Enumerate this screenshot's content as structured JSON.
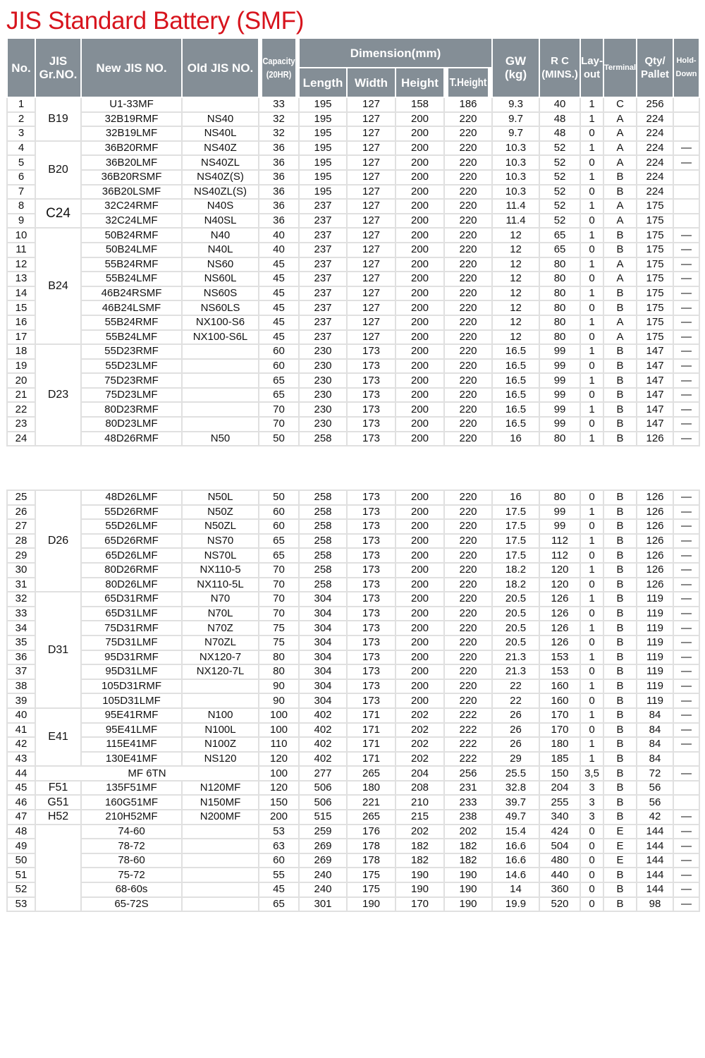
{
  "title": "JIS Standard Battery (SMF)",
  "headers": {
    "no": "No.",
    "jis_gr": "JIS Gr.NO.",
    "new_jis": "New JIS NO.",
    "old_jis": "Old JIS NO.",
    "capacity": "Capacity (20HR)",
    "dimension": "Dimension(mm)",
    "length": "Length",
    "width": "Width",
    "height": "Height",
    "t_height": "T.Height",
    "gw": "GW (kg)",
    "rc": "R C (MINS.)",
    "layout": "Lay- out",
    "terminal": "Terminal",
    "qty": "Qty/ Pallet",
    "hold": "Hold- Down"
  },
  "groups": [
    {
      "label": "B19",
      "first": 1,
      "last": 3
    },
    {
      "label": "B20",
      "first": 4,
      "last": 7
    },
    {
      "label": "C24",
      "first": 8,
      "last": 9
    },
    {
      "label": "B24",
      "first": 10,
      "last": 17
    },
    {
      "label": "D23",
      "first": 18,
      "last": 24
    },
    {
      "label": "D26",
      "first": 25,
      "last": 31
    },
    {
      "label": "D31",
      "first": 32,
      "last": 39
    },
    {
      "label": "E41",
      "first": 40,
      "last": 43
    },
    {
      "label": "F51",
      "first": 45,
      "last": 45
    },
    {
      "label": "G51",
      "first": 46,
      "last": 46
    },
    {
      "label": "H52",
      "first": 47,
      "last": 47
    },
    {
      "label": "",
      "first": 48,
      "last": 53
    }
  ],
  "columns": [
    "no",
    "new_jis",
    "old_jis",
    "capacity",
    "length",
    "width",
    "height",
    "t_height",
    "gw",
    "rc",
    "layout",
    "terminal",
    "qty",
    "hold"
  ],
  "rows": [
    [
      "1",
      "U1-33MF",
      "",
      "33",
      "195",
      "127",
      "158",
      "186",
      "9.3",
      "40",
      "1",
      "C",
      "256",
      ""
    ],
    [
      "2",
      "32B19RMF",
      "NS40",
      "32",
      "195",
      "127",
      "200",
      "220",
      "9.7",
      "48",
      "1",
      "A",
      "224",
      ""
    ],
    [
      "3",
      "32B19LMF",
      "NS40L",
      "32",
      "195",
      "127",
      "200",
      "220",
      "9.7",
      "48",
      "0",
      "A",
      "224",
      ""
    ],
    [
      "4",
      "36B20RMF",
      "NS40Z",
      "36",
      "195",
      "127",
      "200",
      "220",
      "10.3",
      "52",
      "1",
      "A",
      "224",
      "—"
    ],
    [
      "5",
      "36B20LMF",
      "NS40ZL",
      "36",
      "195",
      "127",
      "200",
      "220",
      "10.3",
      "52",
      "0",
      "A",
      "224",
      "—"
    ],
    [
      "6",
      "36B20RSMF",
      "NS40Z(S)",
      "36",
      "195",
      "127",
      "200",
      "220",
      "10.3",
      "52",
      "1",
      "B",
      "224",
      ""
    ],
    [
      "7",
      "36B20LSMF",
      "NS40ZL(S)",
      "36",
      "195",
      "127",
      "200",
      "220",
      "10.3",
      "52",
      "0",
      "B",
      "224",
      ""
    ],
    [
      "8",
      "32C24RMF",
      "N40S",
      "36",
      "237",
      "127",
      "200",
      "220",
      "11.4",
      "52",
      "1",
      "A",
      "175",
      ""
    ],
    [
      "9",
      "32C24LMF",
      "N40SL",
      "36",
      "237",
      "127",
      "200",
      "220",
      "11.4",
      "52",
      "0",
      "A",
      "175",
      ""
    ],
    [
      "10",
      "50B24RMF",
      "N40",
      "40",
      "237",
      "127",
      "200",
      "220",
      "12",
      "65",
      "1",
      "B",
      "175",
      "—"
    ],
    [
      "11",
      "50B24LMF",
      "N40L",
      "40",
      "237",
      "127",
      "200",
      "220",
      "12",
      "65",
      "0",
      "B",
      "175",
      "—"
    ],
    [
      "12",
      "55B24RMF",
      "NS60",
      "45",
      "237",
      "127",
      "200",
      "220",
      "12",
      "80",
      "1",
      "A",
      "175",
      "—"
    ],
    [
      "13",
      "55B24LMF",
      "NS60L",
      "45",
      "237",
      "127",
      "200",
      "220",
      "12",
      "80",
      "0",
      "A",
      "175",
      "—"
    ],
    [
      "14",
      "46B24RSMF",
      "NS60S",
      "45",
      "237",
      "127",
      "200",
      "220",
      "12",
      "80",
      "1",
      "B",
      "175",
      "—"
    ],
    [
      "15",
      "46B24LSMF",
      "NS60LS",
      "45",
      "237",
      "127",
      "200",
      "220",
      "12",
      "80",
      "0",
      "B",
      "175",
      "—"
    ],
    [
      "16",
      "55B24RMF",
      "NX100-S6",
      "45",
      "237",
      "127",
      "200",
      "220",
      "12",
      "80",
      "1",
      "A",
      "175",
      "—"
    ],
    [
      "17",
      "55B24LMF",
      "NX100-S6L",
      "45",
      "237",
      "127",
      "200",
      "220",
      "12",
      "80",
      "0",
      "A",
      "175",
      "—"
    ],
    [
      "18",
      "55D23RMF",
      "",
      "60",
      "230",
      "173",
      "200",
      "220",
      "16.5",
      "99",
      "1",
      "B",
      "147",
      "—"
    ],
    [
      "19",
      "55D23LMF",
      "",
      "60",
      "230",
      "173",
      "200",
      "220",
      "16.5",
      "99",
      "0",
      "B",
      "147",
      "—"
    ],
    [
      "20",
      "75D23RMF",
      "",
      "65",
      "230",
      "173",
      "200",
      "220",
      "16.5",
      "99",
      "1",
      "B",
      "147",
      "—"
    ],
    [
      "21",
      "75D23LMF",
      "",
      "65",
      "230",
      "173",
      "200",
      "220",
      "16.5",
      "99",
      "0",
      "B",
      "147",
      "—"
    ],
    [
      "22",
      "80D23RMF",
      "",
      "70",
      "230",
      "173",
      "200",
      "220",
      "16.5",
      "99",
      "1",
      "B",
      "147",
      "—"
    ],
    [
      "23",
      "80D23LMF",
      "",
      "70",
      "230",
      "173",
      "200",
      "220",
      "16.5",
      "99",
      "0",
      "B",
      "147",
      "—"
    ],
    [
      "24",
      "48D26RMF",
      "N50",
      "50",
      "258",
      "173",
      "200",
      "220",
      "16",
      "80",
      "1",
      "B",
      "126",
      "—"
    ],
    [
      "25",
      "48D26LMF",
      "N50L",
      "50",
      "258",
      "173",
      "200",
      "220",
      "16",
      "80",
      "0",
      "B",
      "126",
      "—"
    ],
    [
      "26",
      "55D26RMF",
      "N50Z",
      "60",
      "258",
      "173",
      "200",
      "220",
      "17.5",
      "99",
      "1",
      "B",
      "126",
      "—"
    ],
    [
      "27",
      "55D26LMF",
      "N50ZL",
      "60",
      "258",
      "173",
      "200",
      "220",
      "17.5",
      "99",
      "0",
      "B",
      "126",
      "—"
    ],
    [
      "28",
      "65D26RMF",
      "NS70",
      "65",
      "258",
      "173",
      "200",
      "220",
      "17.5",
      "112",
      "1",
      "B",
      "126",
      "—"
    ],
    [
      "29",
      "65D26LMF",
      "NS70L",
      "65",
      "258",
      "173",
      "200",
      "220",
      "17.5",
      "112",
      "0",
      "B",
      "126",
      "—"
    ],
    [
      "30",
      "80D26RMF",
      "NX110-5",
      "70",
      "258",
      "173",
      "200",
      "220",
      "18.2",
      "120",
      "1",
      "B",
      "126",
      "—"
    ],
    [
      "31",
      "80D26LMF",
      "NX110-5L",
      "70",
      "258",
      "173",
      "200",
      "220",
      "18.2",
      "120",
      "0",
      "B",
      "126",
      "—"
    ],
    [
      "32",
      "65D31RMF",
      "N70",
      "70",
      "304",
      "173",
      "200",
      "220",
      "20.5",
      "126",
      "1",
      "B",
      "119",
      "—"
    ],
    [
      "33",
      "65D31LMF",
      "N70L",
      "70",
      "304",
      "173",
      "200",
      "220",
      "20.5",
      "126",
      "0",
      "B",
      "119",
      "—"
    ],
    [
      "34",
      "75D31RMF",
      "N70Z",
      "75",
      "304",
      "173",
      "200",
      "220",
      "20.5",
      "126",
      "1",
      "B",
      "119",
      "—"
    ],
    [
      "35",
      "75D31LMF",
      "N70ZL",
      "75",
      "304",
      "173",
      "200",
      "220",
      "20.5",
      "126",
      "0",
      "B",
      "119",
      "—"
    ],
    [
      "36",
      "95D31RMF",
      "NX120-7",
      "80",
      "304",
      "173",
      "200",
      "220",
      "21.3",
      "153",
      "1",
      "B",
      "119",
      "—"
    ],
    [
      "37",
      "95D31LMF",
      "NX120-7L",
      "80",
      "304",
      "173",
      "200",
      "220",
      "21.3",
      "153",
      "0",
      "B",
      "119",
      "—"
    ],
    [
      "38",
      "105D31RMF",
      "",
      "90",
      "304",
      "173",
      "200",
      "220",
      "22",
      "160",
      "1",
      "B",
      "119",
      "—"
    ],
    [
      "39",
      "105D31LMF",
      "",
      "90",
      "304",
      "173",
      "200",
      "220",
      "22",
      "160",
      "0",
      "B",
      "119",
      "—"
    ],
    [
      "40",
      "95E41RMF",
      "N100",
      "100",
      "402",
      "171",
      "202",
      "222",
      "26",
      "170",
      "1",
      "B",
      "84",
      "—"
    ],
    [
      "41",
      "95E41LMF",
      "N100L",
      "100",
      "402",
      "171",
      "202",
      "222",
      "26",
      "170",
      "0",
      "B",
      "84",
      "—"
    ],
    [
      "42",
      "115E41MF",
      "N100Z",
      "110",
      "402",
      "171",
      "202",
      "222",
      "26",
      "180",
      "1",
      "B",
      "84",
      "—"
    ],
    [
      "43",
      "130E41MF",
      "NS120",
      "120",
      "402",
      "171",
      "202",
      "222",
      "29",
      "185",
      "1",
      "B",
      "84",
      ""
    ],
    [
      "44",
      "MF 6TN",
      "",
      "100",
      "277",
      "265",
      "204",
      "256",
      "25.5",
      "150",
      "3,5",
      "B",
      "72",
      "—"
    ],
    [
      "45",
      "135F51MF",
      "N120MF",
      "120",
      "506",
      "180",
      "208",
      "231",
      "32.8",
      "204",
      "3",
      "B",
      "56",
      ""
    ],
    [
      "46",
      "160G51MF",
      "N150MF",
      "150",
      "506",
      "221",
      "210",
      "233",
      "39.7",
      "255",
      "3",
      "B",
      "56",
      ""
    ],
    [
      "47",
      "210H52MF",
      "N200MF",
      "200",
      "515",
      "265",
      "215",
      "238",
      "49.7",
      "340",
      "3",
      "B",
      "42",
      "—"
    ],
    [
      "48",
      "74-60",
      "",
      "53",
      "259",
      "176",
      "202",
      "202",
      "15.4",
      "424",
      "0",
      "E",
      "144",
      "—"
    ],
    [
      "49",
      "78-72",
      "",
      "63",
      "269",
      "178",
      "182",
      "182",
      "16.6",
      "504",
      "0",
      "E",
      "144",
      "—"
    ],
    [
      "50",
      "78-60",
      "",
      "60",
      "269",
      "178",
      "182",
      "182",
      "16.6",
      "480",
      "0",
      "E",
      "144",
      "—"
    ],
    [
      "51",
      "75-72",
      "",
      "55",
      "240",
      "175",
      "190",
      "190",
      "14.6",
      "440",
      "0",
      "B",
      "144",
      "—"
    ],
    [
      "52",
      "68-60s",
      "",
      "45",
      "240",
      "175",
      "190",
      "190",
      "14",
      "360",
      "0",
      "B",
      "144",
      "—"
    ],
    [
      "53",
      "65-72S",
      "",
      "65",
      "301",
      "190",
      "170",
      "190",
      "19.9",
      "520",
      "0",
      "B",
      "98",
      "—"
    ]
  ],
  "merged_row": "44"
}
